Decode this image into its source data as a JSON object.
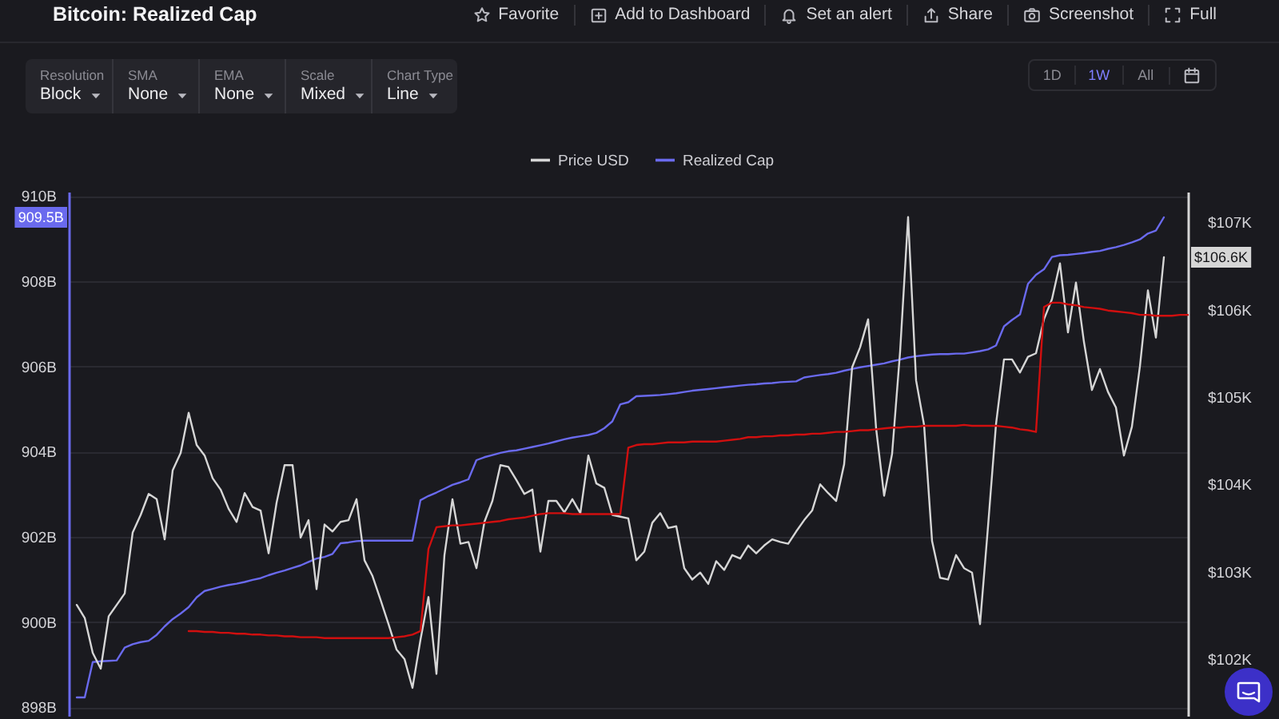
{
  "chart_data": [
    {
      "type": "other",
      "title": "Bitcoin: Realized Cap",
      "annotations": [
        "Favorite",
        "Add to Dashboard",
        "Set an alert",
        "Share",
        "Screenshot",
        "Full",
        "Resolution",
        "Block",
        "SMA",
        "None",
        "EMA",
        "None",
        "Scale",
        "Mixed",
        "Chart Type",
        "Line",
        "1D",
        "1W",
        "All"
      ]
    },
    {
      "type": "line",
      "categories": [
        null,
        null,
        null,
        null,
        null,
        null,
        null,
        null,
        null,
        null,
        null,
        null,
        null,
        null,
        null,
        null,
        null,
        null,
        null,
        null,
        null,
        null,
        null,
        null,
        null,
        null,
        null,
        null,
        null,
        null,
        null,
        null,
        null,
        null,
        null,
        null,
        null,
        null,
        null,
        null,
        null,
        null,
        null,
        null,
        null,
        null,
        null,
        null,
        null,
        null,
        null,
        null,
        null,
        null,
        null,
        null,
        null,
        null,
        null,
        null,
        null,
        null,
        null,
        null,
        null,
        null,
        null,
        null,
        null,
        null,
        null,
        null,
        null,
        null,
        null,
        null,
        null,
        null,
        null,
        null,
        null,
        null,
        null,
        null,
        null,
        null,
        null,
        null,
        null,
        null,
        null,
        null,
        null,
        null,
        null,
        null,
        null,
        null,
        null,
        null,
        null,
        null,
        null,
        null,
        null,
        null,
        null,
        null,
        null,
        null,
        null,
        null,
        null,
        null,
        null,
        null,
        null,
        null,
        null,
        null,
        null,
        null,
        null,
        null,
        null,
        null,
        null,
        null,
        null,
        null,
        null,
        null,
        null,
        null,
        null,
        null,
        null,
        null,
        null,
        null,
        null
      ],
      "series": [
        {
          "name": "Price USD",
          "color": "#d6d6d6",
          "axis": "y2",
          "values": [
            null,
            102.62,
            102.47,
            102.07,
            101.89,
            102.49,
            102.62,
            102.75,
            103.45,
            103.65,
            103.89,
            103.83,
            103.37,
            104.16,
            104.36,
            104.82,
            104.45,
            104.33,
            104.07,
            103.94,
            103.72,
            103.57,
            103.9,
            103.74,
            103.7,
            103.21,
            103.79,
            104.22,
            104.22,
            103.39,
            103.59,
            102.8,
            103.54,
            103.46,
            103.57,
            103.59,
            103.83,
            103.13,
            102.95,
            102.68,
            102.4,
            102.11,
            102.0,
            101.67,
            102.22,
            102.71,
            101.83,
            103.19,
            103.83,
            103.32,
            103.34,
            103.04,
            103.57,
            103.81,
            104.22,
            104.2,
            104.05,
            103.89,
            103.94,
            103.23,
            103.81,
            103.81,
            103.68,
            103.83,
            103.67,
            104.33,
            104.01,
            103.96,
            103.65,
            103.63,
            103.61,
            103.13,
            103.23,
            103.56,
            103.67,
            103.5,
            103.52,
            103.04,
            102.91,
            102.99,
            102.86,
            103.12,
            103.02,
            103.19,
            103.15,
            103.3,
            103.21,
            103.3,
            103.37,
            103.34,
            103.32,
            103.46,
            103.59,
            103.7,
            104.0,
            103.9,
            103.81,
            104.23,
            105.34,
            105.57,
            105.89,
            104.64,
            103.87,
            104.35,
            105.52,
            107.06,
            105.19,
            104.68,
            103.35,
            102.93,
            102.91,
            103.19,
            103.04,
            102.99,
            102.4,
            103.52,
            104.69,
            105.43,
            105.43,
            105.28,
            105.46,
            105.5,
            105.89,
            106.12,
            106.53,
            105.74,
            106.31,
            105.63,
            105.08,
            105.32,
            105.06,
            104.88,
            104.33,
            104.66,
            105.35,
            106.22,
            105.68,
            106.6,
            null,
            null,
            null
          ]
        },
        {
          "name": "Realized Cap",
          "color": "#6a6aee",
          "values": [
            null,
            898.23,
            898.23,
            899.06,
            899.08,
            899.09,
            899.1,
            899.4,
            899.48,
            899.53,
            899.56,
            899.7,
            899.9,
            900.07,
            900.2,
            900.35,
            900.58,
            900.73,
            900.78,
            900.83,
            900.87,
            900.9,
            900.94,
            900.99,
            901.03,
            901.1,
            901.16,
            901.21,
            901.27,
            901.33,
            901.41,
            901.49,
            901.53,
            901.6,
            901.85,
            901.87,
            901.9,
            901.91,
            901.91,
            901.91,
            901.91,
            901.91,
            901.91,
            901.91,
            902.86,
            902.96,
            903.04,
            903.13,
            903.22,
            903.28,
            903.35,
            903.8,
            903.87,
            903.92,
            903.97,
            904.01,
            904.03,
            904.07,
            904.11,
            904.15,
            904.19,
            904.24,
            904.29,
            904.33,
            904.36,
            904.39,
            904.44,
            904.55,
            904.71,
            905.11,
            905.16,
            905.3,
            905.31,
            905.32,
            905.33,
            905.35,
            905.37,
            905.4,
            905.43,
            905.45,
            905.47,
            905.49,
            905.51,
            905.53,
            905.55,
            905.57,
            905.58,
            905.6,
            905.61,
            905.63,
            905.64,
            905.65,
            905.74,
            905.77,
            905.8,
            905.82,
            905.85,
            905.9,
            905.94,
            905.98,
            906.01,
            906.04,
            906.07,
            906.12,
            906.16,
            906.21,
            906.24,
            906.26,
            906.28,
            906.29,
            906.29,
            906.3,
            906.3,
            906.33,
            906.36,
            906.4,
            906.49,
            906.94,
            907.09,
            907.22,
            907.94,
            908.15,
            908.28,
            908.57,
            908.61,
            908.62,
            908.64,
            908.66,
            908.69,
            908.71,
            908.76,
            908.8,
            908.85,
            908.91,
            908.98,
            909.12,
            909.19,
            909.5,
            null,
            null,
            null
          ]
        },
        {
          "color": "#d10f0f",
          "axis": "y2",
          "values": [
            null,
            null,
            null,
            null,
            null,
            null,
            null,
            null,
            null,
            null,
            null,
            null,
            null,
            null,
            null,
            102.32,
            102.32,
            102.31,
            102.31,
            102.3,
            102.3,
            102.29,
            102.29,
            102.28,
            102.28,
            102.27,
            102.27,
            102.26,
            102.26,
            102.25,
            102.25,
            102.25,
            102.24,
            102.24,
            102.24,
            102.24,
            102.24,
            102.24,
            102.24,
            102.24,
            102.24,
            102.25,
            102.26,
            102.28,
            102.32,
            103.26,
            103.51,
            103.52,
            103.53,
            103.53,
            103.54,
            103.55,
            103.56,
            103.57,
            103.58,
            103.6,
            103.61,
            103.62,
            103.64,
            103.66,
            103.67,
            103.67,
            103.67,
            103.66,
            103.66,
            103.66,
            103.66,
            103.66,
            103.66,
            103.66,
            104.42,
            104.45,
            104.46,
            104.46,
            104.47,
            104.48,
            104.48,
            104.48,
            104.49,
            104.49,
            104.49,
            104.49,
            104.5,
            104.51,
            104.52,
            104.54,
            104.54,
            104.55,
            104.55,
            104.56,
            104.56,
            104.57,
            104.57,
            104.58,
            104.58,
            104.59,
            104.6,
            104.6,
            104.61,
            104.62,
            104.62,
            104.63,
            104.64,
            104.65,
            104.65,
            104.66,
            104.66,
            104.67,
            104.67,
            104.67,
            104.67,
            104.67,
            104.68,
            104.67,
            104.67,
            104.67,
            104.67,
            104.66,
            104.65,
            104.63,
            104.62,
            104.6,
            106.03,
            106.08,
            106.08,
            106.06,
            106.05,
            106.03,
            106.02,
            106.01,
            105.99,
            105.98,
            105.97,
            105.96,
            105.94,
            105.94,
            105.93,
            105.93,
            105.93,
            105.94,
            105.94
          ]
        }
      ],
      "ylim": [
        897.8,
        910.1
      ],
      "yticks": [
        {
          "value": 898,
          "label": "898B"
        },
        {
          "value": 900,
          "label": "900B"
        },
        {
          "value": 902,
          "label": "902B"
        },
        {
          "value": 904,
          "label": "904B"
        },
        {
          "value": 906,
          "label": "906B"
        },
        {
          "value": 908,
          "label": "908B"
        },
        {
          "value": 910,
          "label": "910B"
        }
      ],
      "y2lim": [
        101.35,
        107.35
      ],
      "y2ticks": [
        {
          "value": 102,
          "label": "$102K"
        },
        {
          "value": 103,
          "label": "$103K"
        },
        {
          "value": 104,
          "label": "$104K"
        },
        {
          "value": 105,
          "label": "$105K"
        },
        {
          "value": 106,
          "label": "$106K"
        },
        {
          "value": 107,
          "label": "$107K"
        }
      ],
      "grid": "y",
      "legend": "top",
      "annotations": [
        "909.5B",
        "$106.6K"
      ]
    }
  ]
}
